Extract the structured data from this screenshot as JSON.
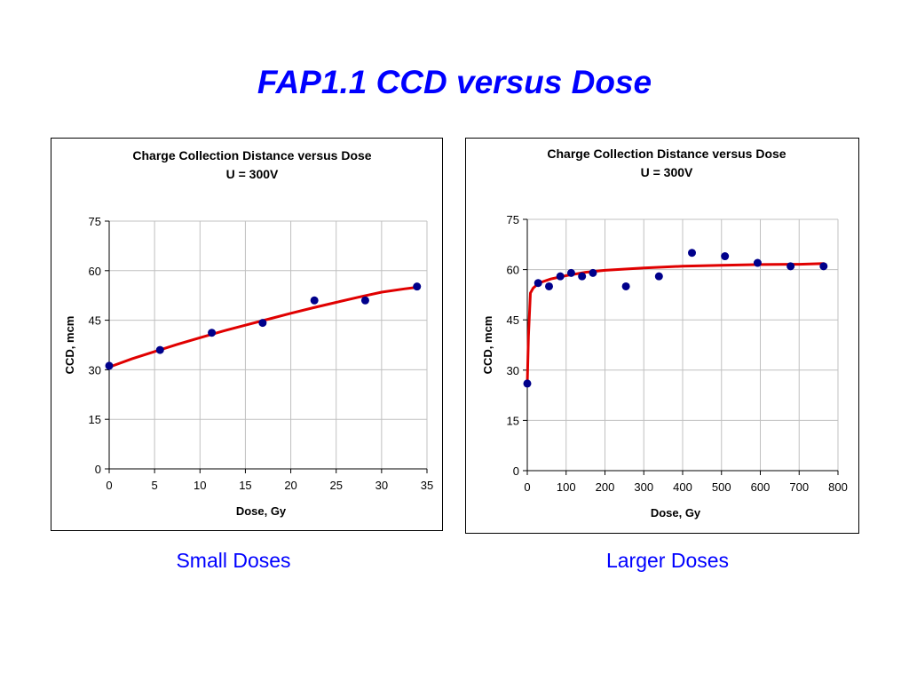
{
  "slide": {
    "title": "FAP1.1 CCD versus Dose",
    "caption_left": "Small Doses",
    "caption_right": "Larger Doses"
  },
  "colors": {
    "title": "#0000ff",
    "fit_line": "#e00000",
    "points": "#00008b",
    "grid": "#c0c0c0"
  },
  "chart_data": [
    {
      "type": "scatter",
      "title": "Charge Collection Distance versus Dose",
      "subtitle": "U = 300V",
      "xlabel": "Dose, Gy",
      "ylabel": "CCD, mcm",
      "xlim": [
        0,
        35
      ],
      "ylim": [
        0,
        75
      ],
      "xticks": [
        0,
        5,
        10,
        15,
        20,
        25,
        30,
        35
      ],
      "yticks": [
        0,
        15,
        30,
        45,
        60,
        75
      ],
      "grid": true,
      "series": [
        {
          "kind": "points",
          "x": [
            0,
            5.6,
            11.3,
            16.9,
            22.6,
            28.2,
            33.9
          ],
          "y": [
            31.2,
            36,
            41.2,
            44.2,
            51,
            51,
            55.2
          ]
        },
        {
          "kind": "fit-line",
          "x": [
            0,
            2.5,
            5,
            7.5,
            10,
            12.5,
            15,
            17.5,
            20,
            22.5,
            25,
            27.5,
            30,
            32.5,
            34
          ],
          "y": [
            30.8,
            33.3,
            35.5,
            37.7,
            39.7,
            41.7,
            43.5,
            45.3,
            47.1,
            48.8,
            50.4,
            52,
            53.5,
            54.5,
            55
          ]
        }
      ]
    },
    {
      "type": "scatter",
      "title": "Charge Collection Distance versus Dose",
      "subtitle": "U = 300V",
      "xlabel": "Dose, Gy",
      "ylabel": "CCD, mcm",
      "xlim": [
        0,
        800
      ],
      "ylim": [
        0,
        75
      ],
      "xticks": [
        0,
        100,
        200,
        300,
        400,
        500,
        600,
        700,
        800
      ],
      "yticks": [
        0,
        15,
        30,
        45,
        60,
        75
      ],
      "grid": true,
      "series": [
        {
          "kind": "points",
          "x": [
            0,
            28,
            56,
            85,
            113,
            141,
            169,
            254,
            339,
            424,
            509,
            593,
            678,
            763
          ],
          "y": [
            26,
            56,
            55,
            58,
            59,
            58,
            59,
            55,
            58,
            65,
            64,
            62,
            61,
            61
          ]
        },
        {
          "kind": "fit-line",
          "x": [
            0,
            3,
            8,
            15,
            30,
            60,
            100,
            150,
            200,
            300,
            400,
            500,
            600,
            700,
            765
          ],
          "y": [
            26,
            40,
            53,
            54.5,
            56,
            57.2,
            58.2,
            59.2,
            59.8,
            60.5,
            61,
            61.3,
            61.5,
            61.6,
            61.8
          ]
        }
      ]
    }
  ]
}
